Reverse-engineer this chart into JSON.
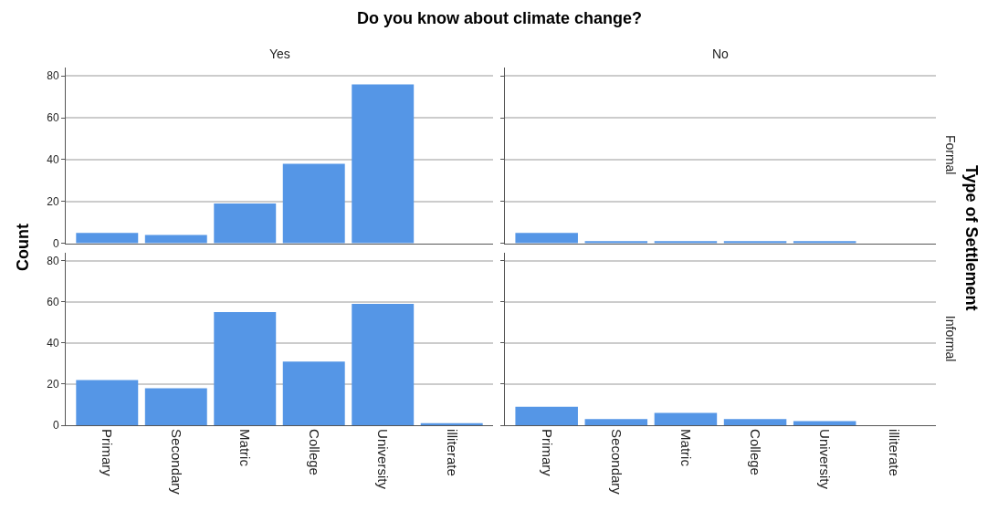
{
  "chart_data": [
    {
      "type": "bar",
      "title": "Yes",
      "annotations": [
        "Do you know about climate change?",
        "Count",
        "Type of Settlement"
      ],
      "categories": [
        "Primary",
        "Secondary",
        "Matric",
        "College",
        "University",
        "illiterate"
      ],
      "values": [
        5,
        4,
        19,
        38,
        76,
        0
      ],
      "color": "#5596e6",
      "ylim": [
        0,
        84
      ],
      "yticks": [
        0,
        20,
        40,
        60,
        80
      ],
      "grid": "y",
      "tick_labels": "y"
    },
    {
      "type": "bar",
      "title": "No",
      "y2label": "Formal",
      "categories": [
        "Primary",
        "Secondary",
        "Matric",
        "College",
        "University",
        "illiterate"
      ],
      "values": [
        5,
        1,
        1,
        1,
        1,
        0
      ],
      "color": "#5596e6",
      "ylim": [
        0,
        84
      ],
      "yticks": [
        0,
        20,
        40,
        60,
        80
      ],
      "grid": "y",
      "tick_labels": false
    },
    {
      "type": "bar",
      "categories": [
        "Primary",
        "Secondary",
        "Matric",
        "College",
        "University",
        "illiterate"
      ],
      "values": [
        22,
        18,
        55,
        31,
        59,
        1
      ],
      "color": "#5596e6",
      "ylim": [
        0,
        84
      ],
      "yticks": [
        0,
        20,
        40,
        60,
        80
      ],
      "grid": "y"
    },
    {
      "type": "bar",
      "y2label": "Informal",
      "categories": [
        "Primary",
        "Secondary",
        "Matric",
        "College",
        "University",
        "illiterate"
      ],
      "values": [
        9,
        3,
        6,
        3,
        2,
        0
      ],
      "color": "#5596e6",
      "ylim": [
        0,
        84
      ],
      "yticks": [
        0,
        20,
        40,
        60,
        80
      ],
      "grid": "y",
      "tick_labels": "x"
    }
  ]
}
